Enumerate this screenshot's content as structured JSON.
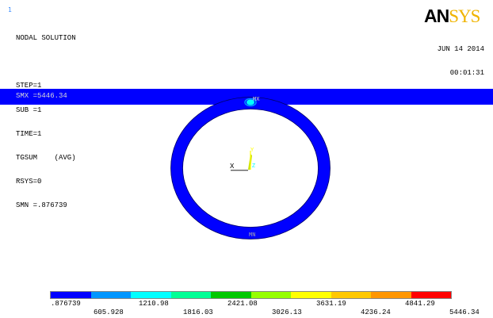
{
  "window_number": "1",
  "info_lines": [
    "NODAL SOLUTION",
    "",
    "STEP=1",
    "SUB =1",
    "TIME=1",
    "TGSUM    (AVG)",
    "RSYS=0",
    "SMN =.876739"
  ],
  "smx_line": "SMX =5446.34",
  "logo": {
    "an": "AN",
    "sys": "SYS"
  },
  "date": "JUN 14 2014",
  "time": "00:01:31",
  "model_labels": {
    "mx": "MX",
    "mn": "MN",
    "axis_x": "X",
    "axis_y": "Y",
    "axis_z": "Z"
  },
  "colors": {
    "band": "#0000ff",
    "ring": "#0000ff",
    "legend": [
      "#0000ff",
      "#0096ff",
      "#00ffff",
      "#00ff96",
      "#00c800",
      "#96ff00",
      "#ffff00",
      "#ffc800",
      "#ff9600",
      "#ff0000"
    ]
  },
  "legend": {
    "top_labels": [
      ".876739",
      "1210.98",
      "2421.08",
      "3631.19",
      "4841.29"
    ],
    "bottom_labels": [
      "605.928",
      "1816.03",
      "3026.13",
      "4236.24",
      "5446.34"
    ]
  }
}
